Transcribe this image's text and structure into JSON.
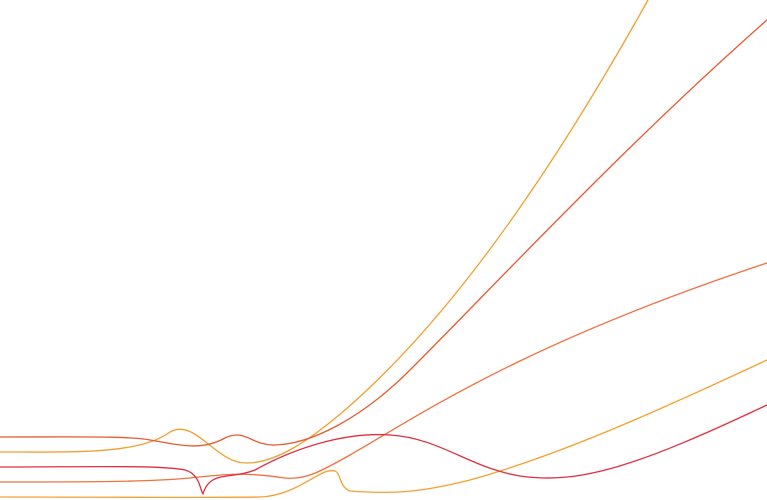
{
  "artwork": {
    "background": "#ffffff",
    "lines": [
      {
        "id": "curve-1",
        "color": "#f0a030"
      },
      {
        "id": "curve-2",
        "color": "#e85a30"
      },
      {
        "id": "curve-3",
        "color": "#f07040"
      },
      {
        "id": "curve-4",
        "color": "#f5a030"
      },
      {
        "id": "curve-5",
        "color": "#e03040"
      }
    ]
  }
}
